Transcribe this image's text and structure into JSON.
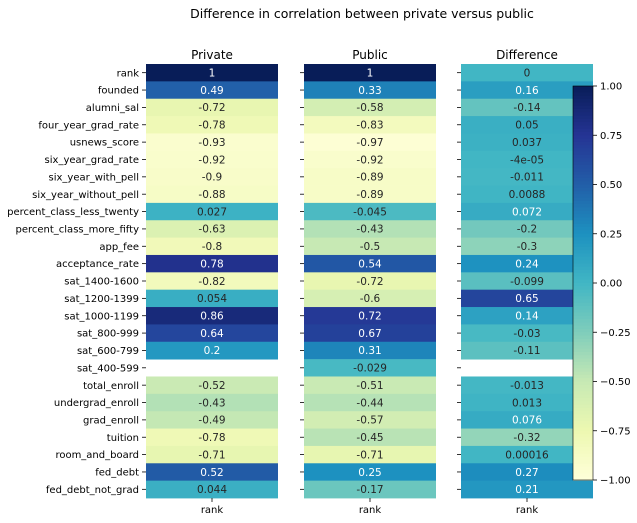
{
  "chart_data": {
    "type": "heatmap",
    "title": "Difference in correlation between private versus public",
    "row_labels": [
      "rank",
      "founded",
      "alumni_sal",
      "four_year_grad_rate",
      "usnews_score",
      "six_year_grad_rate",
      "six_year_with_pell",
      "six_year_without_pell",
      "percent_class_less_twenty",
      "percent_class_more_fifty",
      "app_fee",
      "acceptance_rate",
      "sat_1400-1600",
      "sat_1200-1399",
      "sat_1000-1199",
      "sat_800-999",
      "sat_600-799",
      "sat_400-599",
      "total_enroll",
      "undergrad_enroll",
      "grad_enroll",
      "tuition",
      "room_and_board",
      "fed_debt",
      "fed_debt_not_grad"
    ],
    "panels": [
      {
        "title": "Private",
        "xlabel": "rank",
        "values": [
          1,
          0.49,
          -0.72,
          -0.78,
          -0.93,
          -0.92,
          -0.9,
          -0.88,
          0.027,
          -0.63,
          -0.8,
          0.78,
          -0.82,
          0.054,
          0.86,
          0.64,
          0.2,
          null,
          -0.52,
          -0.43,
          -0.49,
          -0.78,
          -0.71,
          0.52,
          0.044
        ],
        "labels": [
          "1",
          "0.49",
          "-0.72",
          "-0.78",
          "-0.93",
          "-0.92",
          "-0.9",
          "-0.88",
          "0.027",
          "-0.63",
          "-0.8",
          "0.78",
          "-0.82",
          "0.054",
          "0.86",
          "0.64",
          "0.2",
          "",
          "-0.52",
          "-0.43",
          "-0.49",
          "-0.78",
          "-0.71",
          "0.52",
          "0.044"
        ]
      },
      {
        "title": "Public",
        "xlabel": "rank",
        "values": [
          1,
          0.33,
          -0.58,
          -0.83,
          -0.97,
          -0.92,
          -0.89,
          -0.89,
          -0.045,
          -0.43,
          -0.5,
          0.54,
          -0.72,
          -0.6,
          0.72,
          0.67,
          0.31,
          -0.029,
          -0.51,
          -0.44,
          -0.57,
          -0.45,
          -0.71,
          0.25,
          -0.17
        ],
        "labels": [
          "1",
          "0.33",
          "-0.58",
          "-0.83",
          "-0.97",
          "-0.92",
          "-0.89",
          "-0.89",
          "-0.045",
          "-0.43",
          "-0.5",
          "0.54",
          "-0.72",
          "-0.6",
          "0.72",
          "0.67",
          "0.31",
          "-0.029",
          "-0.51",
          "-0.44",
          "-0.57",
          "-0.45",
          "-0.71",
          "0.25",
          "-0.17"
        ]
      },
      {
        "title": "Difference",
        "xlabel": "rank",
        "values": [
          0,
          0.16,
          -0.14,
          0.05,
          0.037,
          -4e-05,
          -0.011,
          0.0088,
          0.072,
          -0.2,
          -0.3,
          0.24,
          -0.099,
          0.65,
          0.14,
          -0.03,
          -0.11,
          null,
          -0.013,
          0.013,
          0.076,
          -0.32,
          0.00016,
          0.27,
          0.21
        ],
        "labels": [
          "0",
          "0.16",
          "-0.14",
          "0.05",
          "0.037",
          "-4e-05",
          "-0.011",
          "0.0088",
          "0.072",
          "-0.2",
          "-0.3",
          "0.24",
          "-0.099",
          "0.65",
          "0.14",
          "-0.03",
          "-0.11",
          "",
          "-0.013",
          "0.013",
          "0.076",
          "-0.32",
          "0.00016",
          "0.27",
          "0.21"
        ]
      }
    ],
    "colormap": "YlGnBu",
    "vmin": -1,
    "vmax": 1,
    "colorbar_ticks": [
      1.0,
      0.75,
      0.5,
      0.25,
      0.0,
      -0.25,
      -0.5,
      -0.75,
      -1.0
    ],
    "colorbar_tick_labels": [
      "1.00",
      "0.75",
      "0.50",
      "0.25",
      "0.00",
      "−0.25",
      "−0.50",
      "−0.75",
      "−1.00"
    ]
  }
}
